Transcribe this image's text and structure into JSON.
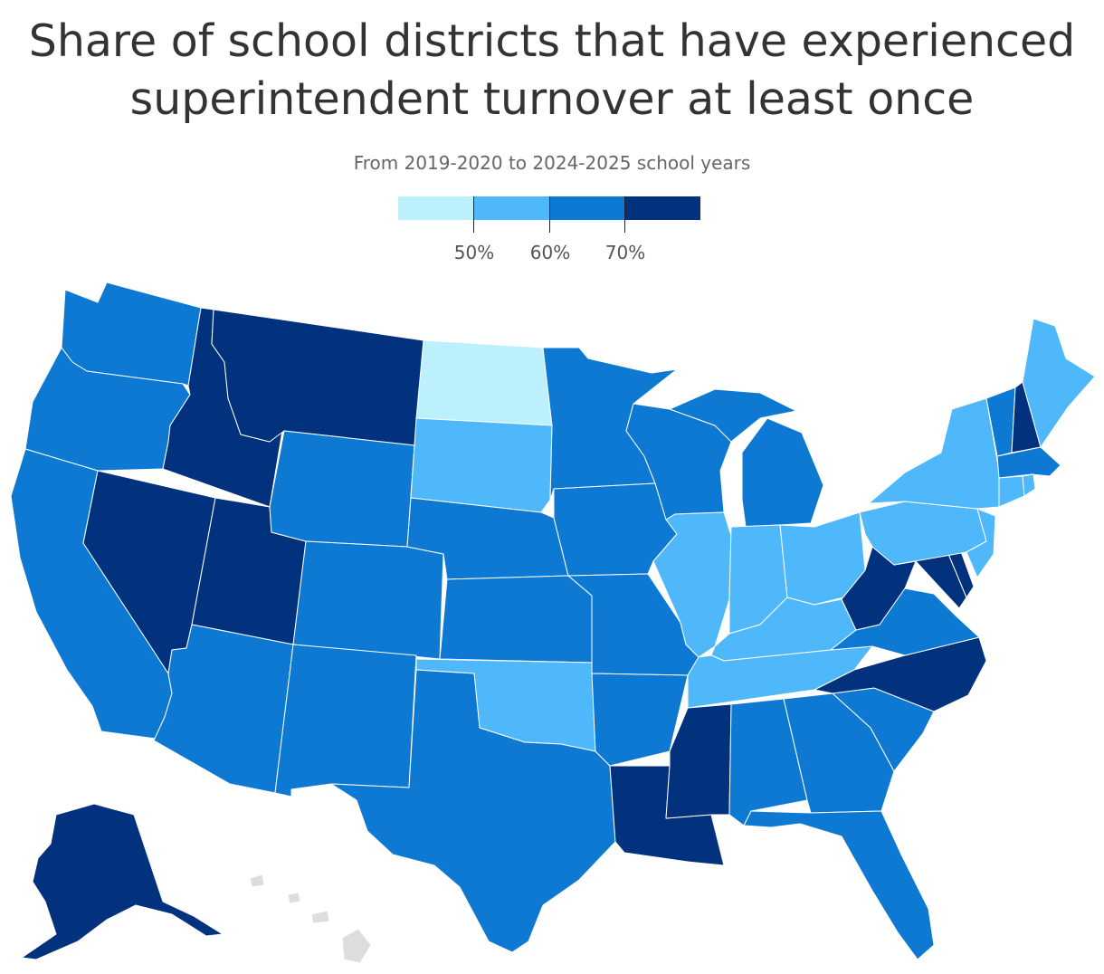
{
  "title": "Share of school districts that have experienced superintendent turnover at least once",
  "subtitle": "From 2019-2020 to 2024-2025 school years",
  "legend": {
    "bins": [
      {
        "color": "#bdf0fd"
      },
      {
        "color": "#4eb8fa"
      },
      {
        "color": "#0e79d3"
      },
      {
        "color": "#02327e"
      }
    ],
    "thresholds": [
      "50%",
      "60%",
      "70%"
    ]
  },
  "colors": {
    "lt50": "#bdf0fd",
    "50to60": "#4eb8fa",
    "60to70": "#0e79d3",
    "gt70": "#02327e",
    "no_data": "#dddddd"
  },
  "states": [
    {
      "name": "Washington",
      "bin": "60to70"
    },
    {
      "name": "Oregon",
      "bin": "60to70"
    },
    {
      "name": "California",
      "bin": "60to70"
    },
    {
      "name": "Idaho",
      "bin": "gt70"
    },
    {
      "name": "Nevada",
      "bin": "gt70"
    },
    {
      "name": "Utah",
      "bin": "gt70"
    },
    {
      "name": "Montana",
      "bin": "gt70"
    },
    {
      "name": "Wyoming",
      "bin": "60to70"
    },
    {
      "name": "Colorado",
      "bin": "60to70"
    },
    {
      "name": "Arizona",
      "bin": "60to70"
    },
    {
      "name": "New Mexico",
      "bin": "60to70"
    },
    {
      "name": "North Dakota",
      "bin": "lt50"
    },
    {
      "name": "South Dakota",
      "bin": "50to60"
    },
    {
      "name": "Nebraska",
      "bin": "60to70"
    },
    {
      "name": "Kansas",
      "bin": "60to70"
    },
    {
      "name": "Oklahoma",
      "bin": "50to60"
    },
    {
      "name": "Texas",
      "bin": "60to70"
    },
    {
      "name": "Minnesota",
      "bin": "60to70"
    },
    {
      "name": "Iowa",
      "bin": "60to70"
    },
    {
      "name": "Missouri",
      "bin": "60to70"
    },
    {
      "name": "Arkansas",
      "bin": "60to70"
    },
    {
      "name": "Louisiana",
      "bin": "gt70"
    },
    {
      "name": "Wisconsin",
      "bin": "60to70"
    },
    {
      "name": "Illinois",
      "bin": "50to60"
    },
    {
      "name": "Michigan",
      "bin": "60to70"
    },
    {
      "name": "Indiana",
      "bin": "50to60"
    },
    {
      "name": "Ohio",
      "bin": "50to60"
    },
    {
      "name": "Kentucky",
      "bin": "50to60"
    },
    {
      "name": "Tennessee",
      "bin": "50to60"
    },
    {
      "name": "Mississippi",
      "bin": "gt70"
    },
    {
      "name": "Alabama",
      "bin": "60to70"
    },
    {
      "name": "Georgia",
      "bin": "60to70"
    },
    {
      "name": "Florida",
      "bin": "60to70"
    },
    {
      "name": "South Carolina",
      "bin": "60to70"
    },
    {
      "name": "North Carolina",
      "bin": "gt70"
    },
    {
      "name": "Virginia",
      "bin": "60to70"
    },
    {
      "name": "West Virginia",
      "bin": "gt70"
    },
    {
      "name": "Maryland",
      "bin": "gt70"
    },
    {
      "name": "Delaware",
      "bin": "gt70"
    },
    {
      "name": "New Jersey",
      "bin": "50to60"
    },
    {
      "name": "Pennsylvania",
      "bin": "50to60"
    },
    {
      "name": "New York",
      "bin": "50to60"
    },
    {
      "name": "Connecticut",
      "bin": "50to60"
    },
    {
      "name": "Rhode Island",
      "bin": "50to60"
    },
    {
      "name": "Massachusetts",
      "bin": "60to70"
    },
    {
      "name": "Vermont",
      "bin": "60to70"
    },
    {
      "name": "New Hampshire",
      "bin": "gt70"
    },
    {
      "name": "Maine",
      "bin": "50to60"
    },
    {
      "name": "Alaska",
      "bin": "gt70"
    },
    {
      "name": "Hawaii",
      "bin": "no_data"
    }
  ]
}
